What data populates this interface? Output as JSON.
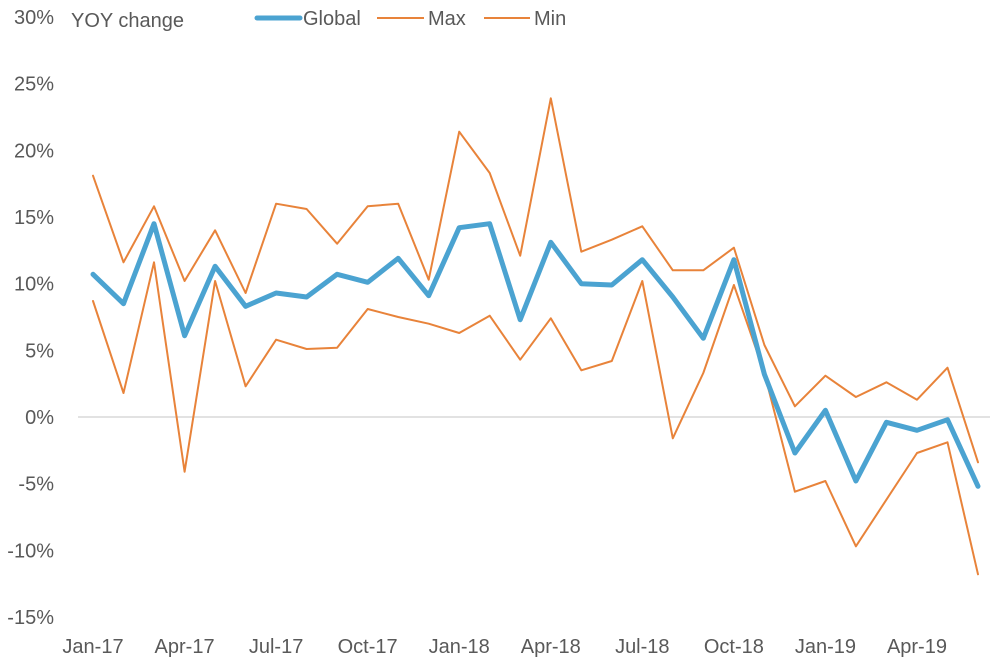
{
  "chart_data": {
    "type": "line",
    "title": "",
    "xlabel": "",
    "ylabel": "YOY change",
    "ylim": [
      -15,
      30
    ],
    "y_ticks": [
      "-15%",
      "-10%",
      "-5%",
      "0%",
      "5%",
      "10%",
      "15%",
      "20%",
      "25%",
      "30%"
    ],
    "x_ticks": [
      "Jan-17",
      "Apr-17",
      "Jul-17",
      "Oct-17",
      "Jan-18",
      "Apr-18",
      "Jul-18",
      "Oct-18",
      "Jan-19",
      "Apr-19"
    ],
    "x": [
      "Jan-17",
      "Feb-17",
      "Mar-17",
      "Apr-17",
      "May-17",
      "Jun-17",
      "Jul-17",
      "Aug-17",
      "Sep-17",
      "Oct-17",
      "Nov-17",
      "Dec-17",
      "Jan-18",
      "Feb-18",
      "Mar-18",
      "Apr-18",
      "May-18",
      "Jun-18",
      "Jul-18",
      "Aug-18",
      "Sep-18",
      "Oct-18",
      "Nov-18",
      "Dec-18",
      "Jan-19",
      "Feb-19",
      "Mar-19",
      "Apr-19",
      "May-19",
      "Jun-19"
    ],
    "grid": false,
    "legend_position": "top",
    "series": [
      {
        "name": "Global",
        "color": "#4BA3D1",
        "values": [
          10.7,
          8.5,
          14.5,
          6.1,
          11.3,
          8.3,
          9.3,
          9.0,
          10.7,
          10.1,
          11.9,
          9.1,
          14.2,
          14.5,
          7.3,
          13.1,
          10.0,
          9.9,
          11.8,
          9.0,
          5.9,
          11.8,
          3.2,
          -2.7,
          0.5,
          -4.8,
          -0.4,
          -1.0,
          -0.2,
          -5.2
        ]
      },
      {
        "name": "Max",
        "color": "#E8833A",
        "values": [
          18.1,
          11.6,
          15.8,
          10.2,
          14.0,
          9.3,
          16.0,
          15.6,
          13.0,
          15.8,
          16.0,
          10.3,
          21.4,
          18.3,
          12.1,
          23.9,
          12.4,
          13.3,
          14.3,
          11.0,
          11.0,
          12.7,
          5.4,
          0.8,
          3.1,
          1.5,
          2.6,
          1.3,
          3.7,
          -3.4
        ]
      },
      {
        "name": "Min",
        "color": "#E8833A",
        "values": [
          8.7,
          1.8,
          11.6,
          -4.1,
          10.2,
          2.3,
          5.8,
          5.1,
          5.2,
          8.1,
          7.5,
          7.0,
          6.3,
          7.6,
          4.3,
          7.4,
          3.5,
          4.2,
          10.2,
          -1.6,
          3.3,
          9.9,
          3.3,
          -5.6,
          -4.8,
          -9.7,
          -6.2,
          -2.7,
          -1.9,
          -11.8
        ]
      }
    ]
  }
}
